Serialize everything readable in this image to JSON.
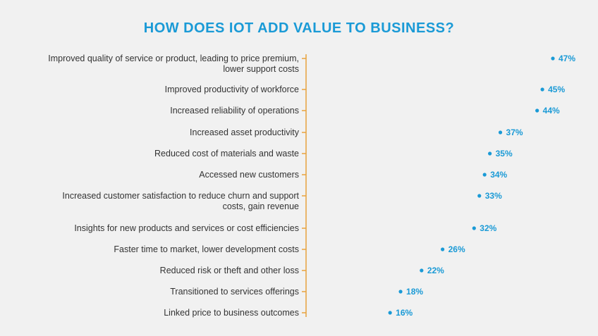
{
  "colors": {
    "accent": "#1a9ad6",
    "axis": "#e8a33d",
    "text": "#333333",
    "background": "#f1f1f1"
  },
  "chart_data": {
    "type": "bar",
    "title": "HOW DOES IOT ADD VALUE TO BUSINESS?",
    "orientation": "horizontal",
    "style": "lollipop",
    "value_suffix": "%",
    "xlim": [
      0,
      50
    ],
    "grid": false,
    "categories": [
      [
        "Improved quality of service or product, leading to price premium,",
        "lower support costs"
      ],
      [
        "Improved productivity of workforce"
      ],
      [
        "Increased reliability of operations"
      ],
      [
        "Increased asset productivity"
      ],
      [
        "Reduced cost of materials and waste"
      ],
      [
        "Accessed new customers"
      ],
      [
        "Increased customer satisfaction to reduce churn and support",
        "costs, gain revenue"
      ],
      [
        "Insights for new products and services or cost efficiencies"
      ],
      [
        "Faster time to market, lower development costs"
      ],
      [
        "Reduced risk or theft and other loss"
      ],
      [
        "Transitioned to services offerings"
      ],
      [
        "Linked price to business outcomes"
      ]
    ],
    "values": [
      47,
      45,
      44,
      37,
      35,
      34,
      33,
      32,
      26,
      22,
      18,
      16
    ]
  }
}
